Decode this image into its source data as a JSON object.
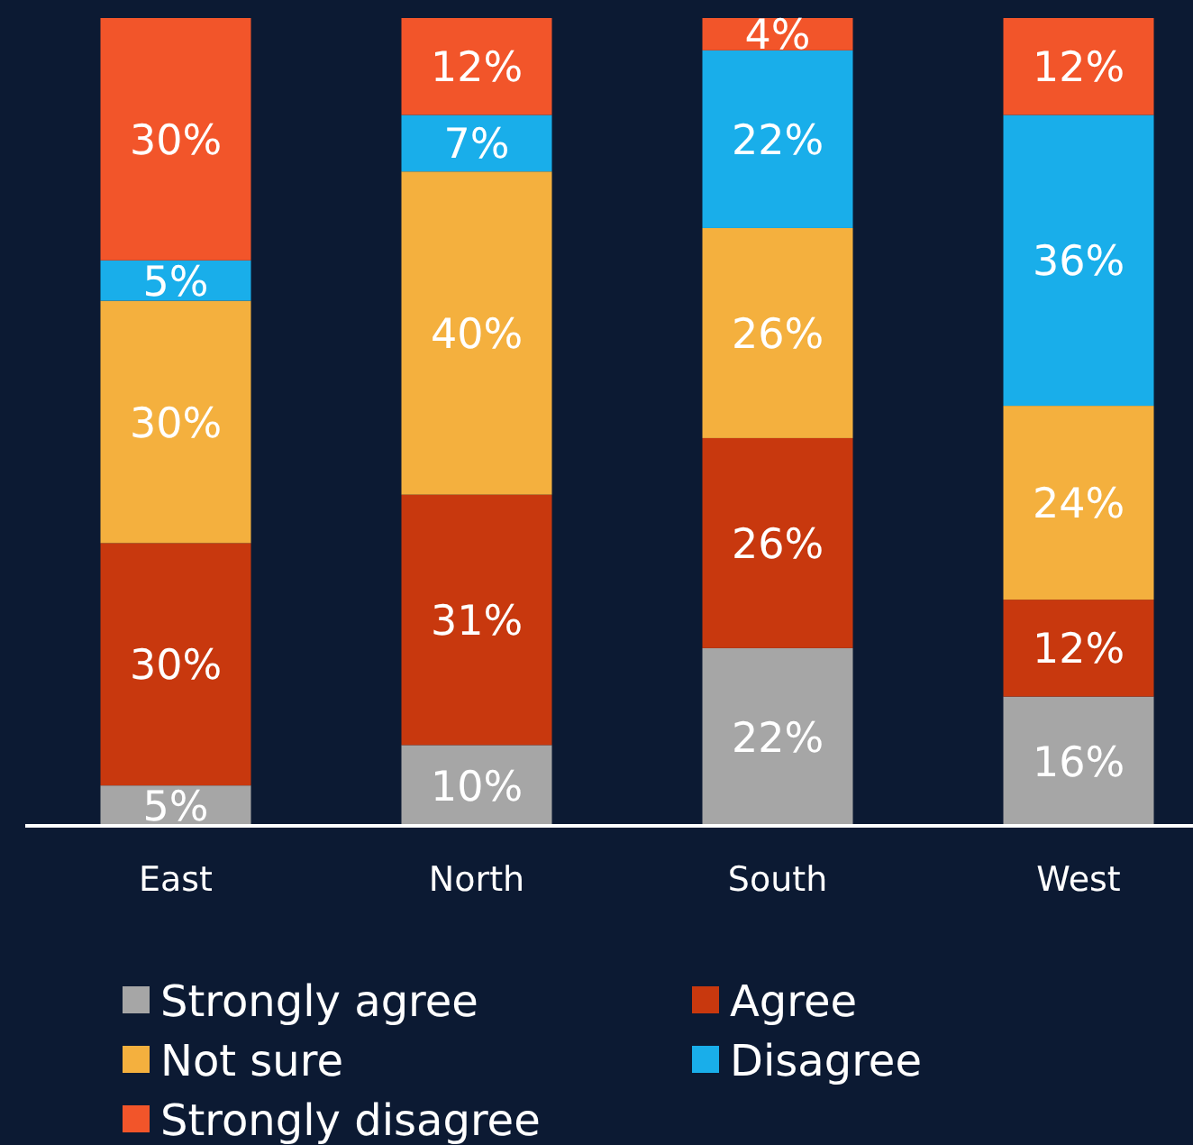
{
  "chart_data": {
    "type": "bar",
    "stacked": true,
    "ylim": [
      0,
      100
    ],
    "categories": [
      "East",
      "North",
      "South",
      "West"
    ],
    "legend": "bottom",
    "series": [
      {
        "name": "Strongly agree",
        "color": "#a6a6a6",
        "values": [
          5,
          10,
          22,
          16
        ],
        "value_labels": [
          "5%",
          "10%",
          "22%",
          "16%"
        ]
      },
      {
        "name": "Agree",
        "color": "#c8380e",
        "values": [
          30,
          31,
          26,
          12
        ],
        "value_labels": [
          "30%",
          "31%",
          "26%",
          "12%"
        ]
      },
      {
        "name": "Not sure",
        "color": "#f4b03e",
        "values": [
          30,
          40,
          26,
          24
        ],
        "value_labels": [
          "30%",
          "40%",
          "26%",
          "24%"
        ]
      },
      {
        "name": "Disagree",
        "color": "#19aeea",
        "values": [
          5,
          7,
          22,
          36
        ],
        "value_labels": [
          "5%",
          "7%",
          "22%",
          "36%"
        ]
      },
      {
        "name": "Strongly disagree",
        "color": "#f2552a",
        "values": [
          30,
          12,
          4,
          12
        ],
        "value_labels": [
          "30%",
          "12%",
          "4%",
          "12%"
        ]
      }
    ]
  }
}
